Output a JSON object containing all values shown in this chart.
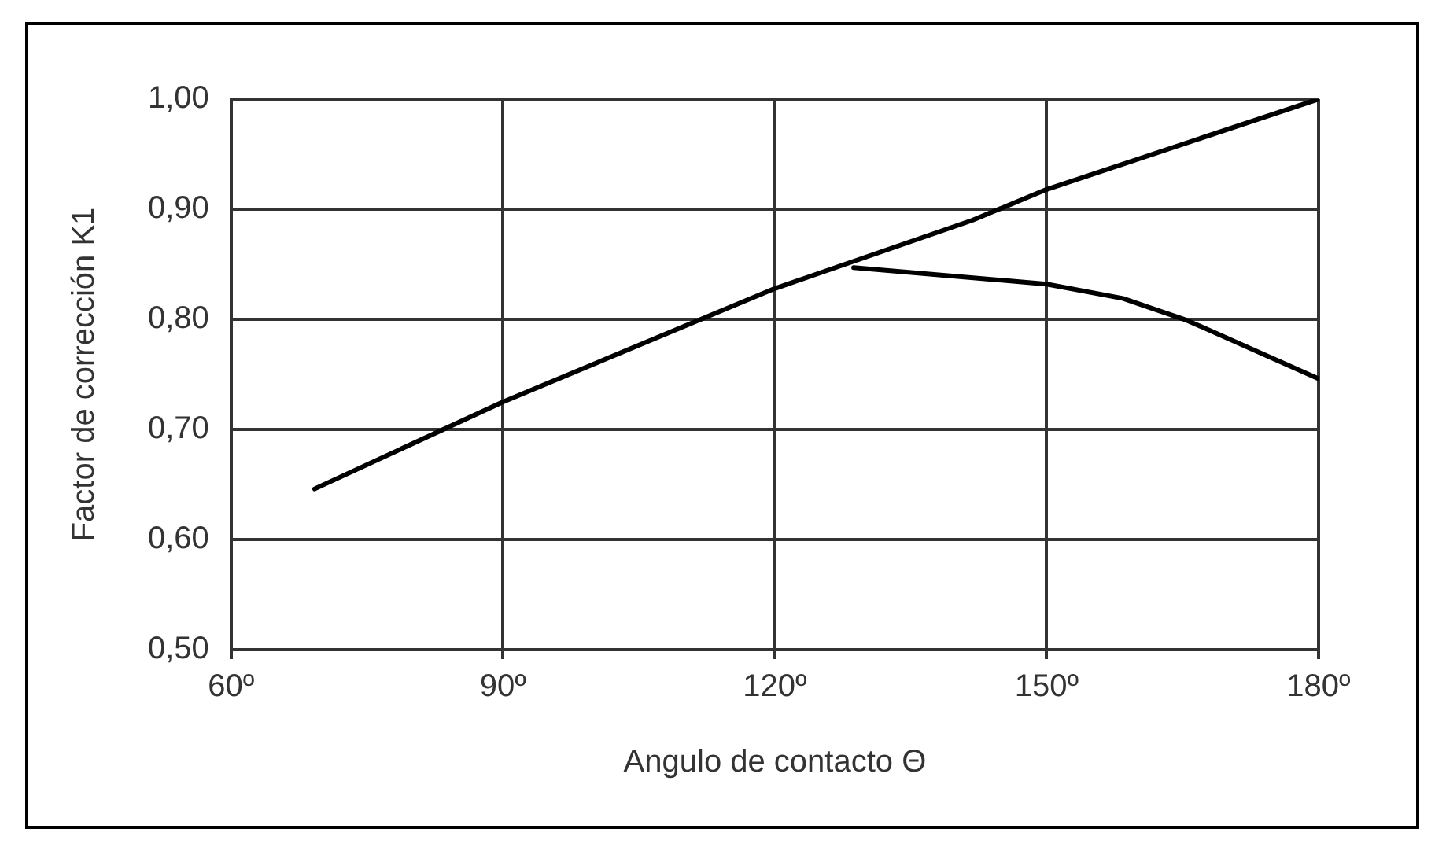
{
  "chart_data": {
    "type": "line",
    "xlabel": "Angulo de contacto Θ",
    "ylabel": "Factor de corrección K1",
    "series": [
      {
        "color": "#000000",
        "x": [
          69.2,
          90,
          120,
          141.8,
          150,
          180
        ],
        "values": [
          0.646,
          0.725,
          0.828,
          0.89,
          0.918,
          1.0
        ]
      },
      {
        "color": "#000000",
        "x": [
          128.7,
          150,
          158.4,
          165.5,
          180
        ],
        "values": [
          0.847,
          0.832,
          0.819,
          0.799,
          0.746
        ]
      }
    ],
    "xlim": [
      60,
      180
    ],
    "xticks": [
      {
        "value": 60,
        "label": "60º"
      },
      {
        "value": 90,
        "label": "90º"
      },
      {
        "value": 120,
        "label": "120º"
      },
      {
        "value": 150,
        "label": "150º"
      },
      {
        "value": 180,
        "label": "180º"
      }
    ],
    "ylim": [
      0.5,
      1.0
    ],
    "yticks": [
      {
        "value": 0.5,
        "label": "0,50"
      },
      {
        "value": 0.6,
        "label": "0,60"
      },
      {
        "value": 0.7,
        "label": "0,70"
      },
      {
        "value": 0.8,
        "label": "0,80"
      },
      {
        "value": 0.9,
        "label": "0,90"
      },
      {
        "value": 1.0,
        "label": "1,00"
      }
    ],
    "grid": true,
    "legend": false,
    "marker": "none",
    "line_style": "solid"
  }
}
